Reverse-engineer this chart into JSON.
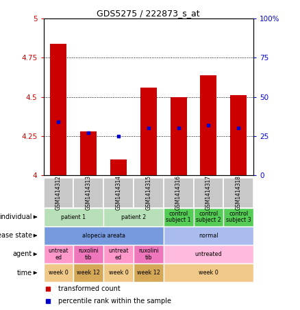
{
  "title": "GDS5275 / 222873_s_at",
  "samples": [
    "GSM1414312",
    "GSM1414313",
    "GSM1414314",
    "GSM1414315",
    "GSM1414316",
    "GSM1414317",
    "GSM1414318"
  ],
  "bar_heights": [
    4.84,
    4.28,
    4.1,
    4.56,
    4.5,
    4.64,
    4.51
  ],
  "blue_dots": [
    4.34,
    4.27,
    4.25,
    4.3,
    4.3,
    4.32,
    4.3
  ],
  "ylim": [
    4.0,
    5.0
  ],
  "y_ticks": [
    4.0,
    4.25,
    4.5,
    4.75,
    5.0
  ],
  "y_tick_labels": [
    "4",
    "4.25",
    "4.5",
    "4.75",
    "5"
  ],
  "y2_ticks": [
    0,
    25,
    50,
    75,
    100
  ],
  "y2_tick_labels": [
    "0",
    "25",
    "50",
    "75",
    "100%"
  ],
  "bar_color": "#cc0000",
  "dot_color": "#0000cc",
  "annotation_rows": [
    {
      "label": "individual",
      "groups": [
        {
          "text": "patient 1",
          "span": [
            0,
            1
          ],
          "color": "#b8e0b8"
        },
        {
          "text": "patient 2",
          "span": [
            2,
            3
          ],
          "color": "#b8e0b8"
        },
        {
          "text": "control\nsubject 1",
          "span": [
            4,
            4
          ],
          "color": "#55cc55"
        },
        {
          "text": "control\nsubject 2",
          "span": [
            5,
            5
          ],
          "color": "#55cc55"
        },
        {
          "text": "control\nsubject 3",
          "span": [
            6,
            6
          ],
          "color": "#55cc55"
        }
      ]
    },
    {
      "label": "disease state",
      "groups": [
        {
          "text": "alopecia areata",
          "span": [
            0,
            3
          ],
          "color": "#7799dd"
        },
        {
          "text": "normal",
          "span": [
            4,
            6
          ],
          "color": "#aabbee"
        }
      ]
    },
    {
      "label": "agent",
      "groups": [
        {
          "text": "untreat\ned",
          "span": [
            0,
            0
          ],
          "color": "#ff99cc"
        },
        {
          "text": "ruxolini\ntib",
          "span": [
            1,
            1
          ],
          "color": "#ee77bb"
        },
        {
          "text": "untreat\ned",
          "span": [
            2,
            2
          ],
          "color": "#ff99cc"
        },
        {
          "text": "ruxolini\ntib",
          "span": [
            3,
            3
          ],
          "color": "#ee77bb"
        },
        {
          "text": "untreated",
          "span": [
            4,
            6
          ],
          "color": "#ffbbdd"
        }
      ]
    },
    {
      "label": "time",
      "groups": [
        {
          "text": "week 0",
          "span": [
            0,
            0
          ],
          "color": "#f0c888"
        },
        {
          "text": "week 12",
          "span": [
            1,
            1
          ],
          "color": "#d4a857"
        },
        {
          "text": "week 0",
          "span": [
            2,
            2
          ],
          "color": "#f0c888"
        },
        {
          "text": "week 12",
          "span": [
            3,
            3
          ],
          "color": "#d4a857"
        },
        {
          "text": "week 0",
          "span": [
            4,
            6
          ],
          "color": "#f0c888"
        }
      ]
    }
  ],
  "legend_items": [
    {
      "label": "transformed count",
      "color": "#cc0000"
    },
    {
      "label": "percentile rank within the sample",
      "color": "#0000cc"
    }
  ],
  "bg_color": "#ffffff",
  "tick_color_left": "#cc0000",
  "tick_color_right": "#0000cc",
  "gsm_bg_color": "#c8c8c8"
}
